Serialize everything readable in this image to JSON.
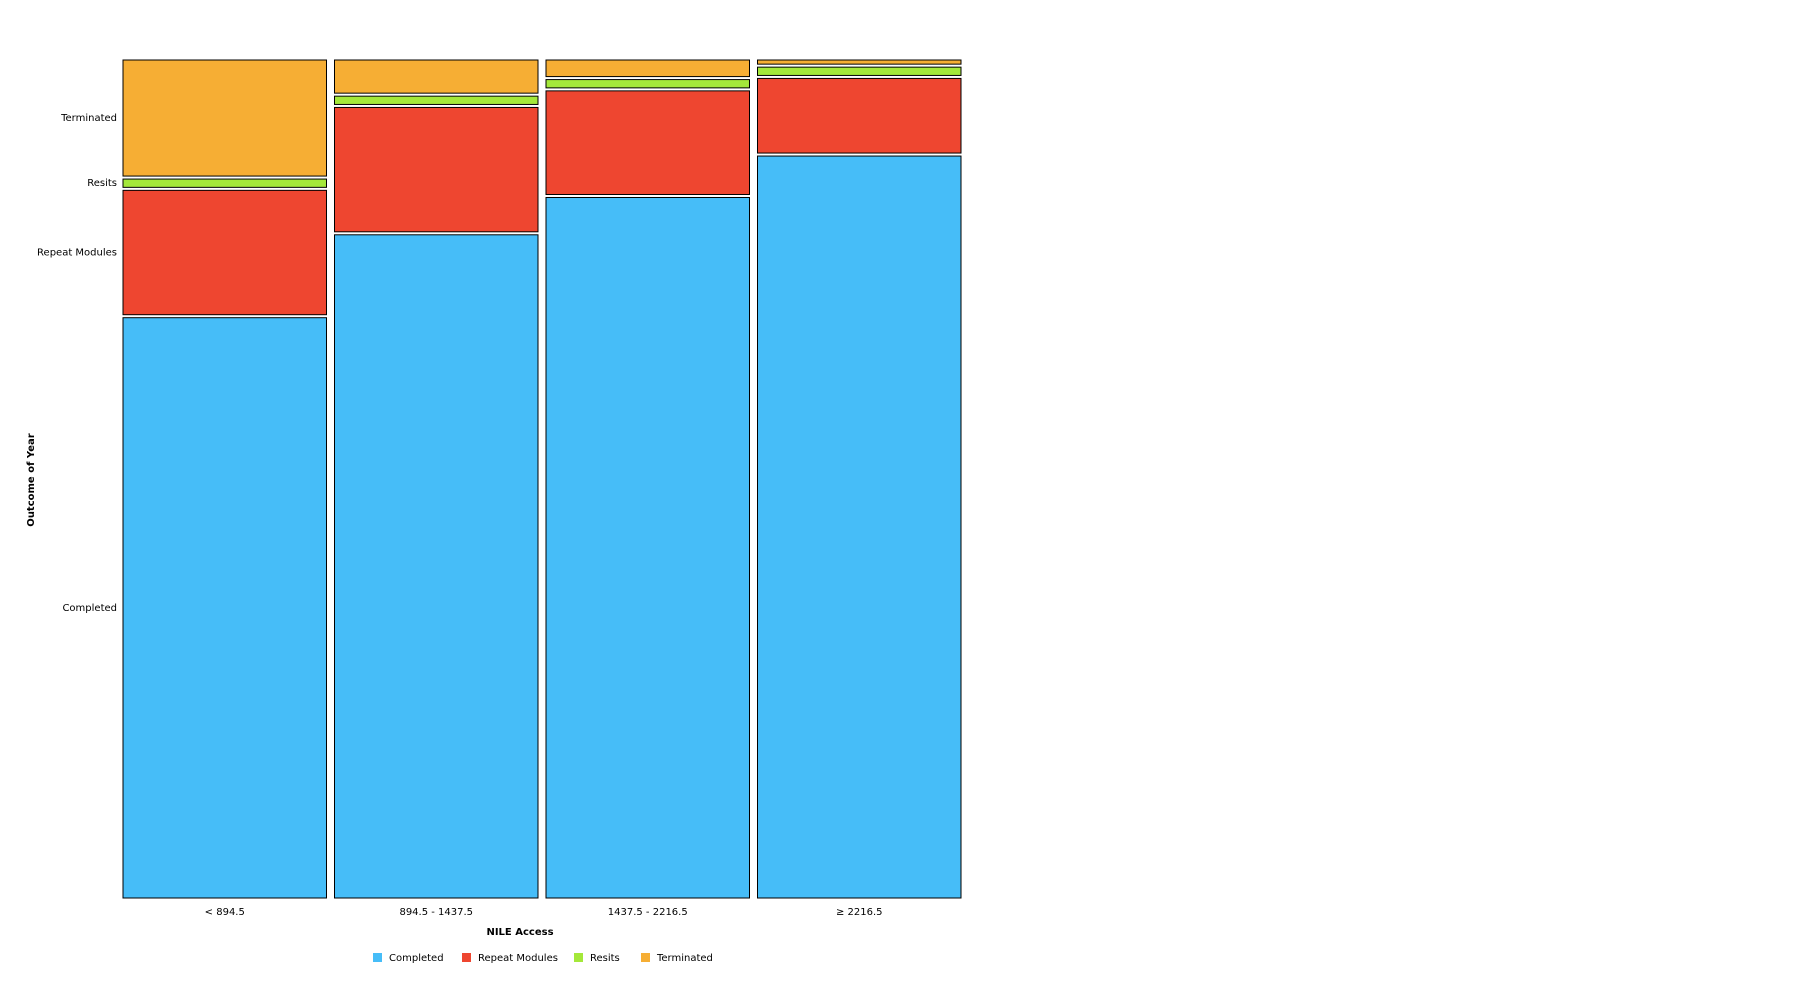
{
  "chart_data": {
    "type": "mosaic",
    "x_label": "NILE Access",
    "y_label": "Outcome of Year",
    "categories": [
      "< 894.5",
      "894.5 - 1437.5",
      "1437.5 - 2216.5",
      "≥ 2216.5"
    ],
    "series": [
      {
        "name": "Completed",
        "color": "#46bdf8",
        "values": [
          70,
          80,
          84.5,
          89.5
        ]
      },
      {
        "name": "Repeat Modules",
        "color": "#ee4630",
        "values": [
          15,
          15,
          12.5,
          9
        ]
      },
      {
        "name": "Resits",
        "color": "#a4e83a",
        "values": [
          1,
          1,
          1,
          1
        ]
      },
      {
        "name": "Terminated",
        "color": "#f6ae34",
        "values": [
          14,
          4,
          2,
          0.5
        ]
      }
    ]
  }
}
